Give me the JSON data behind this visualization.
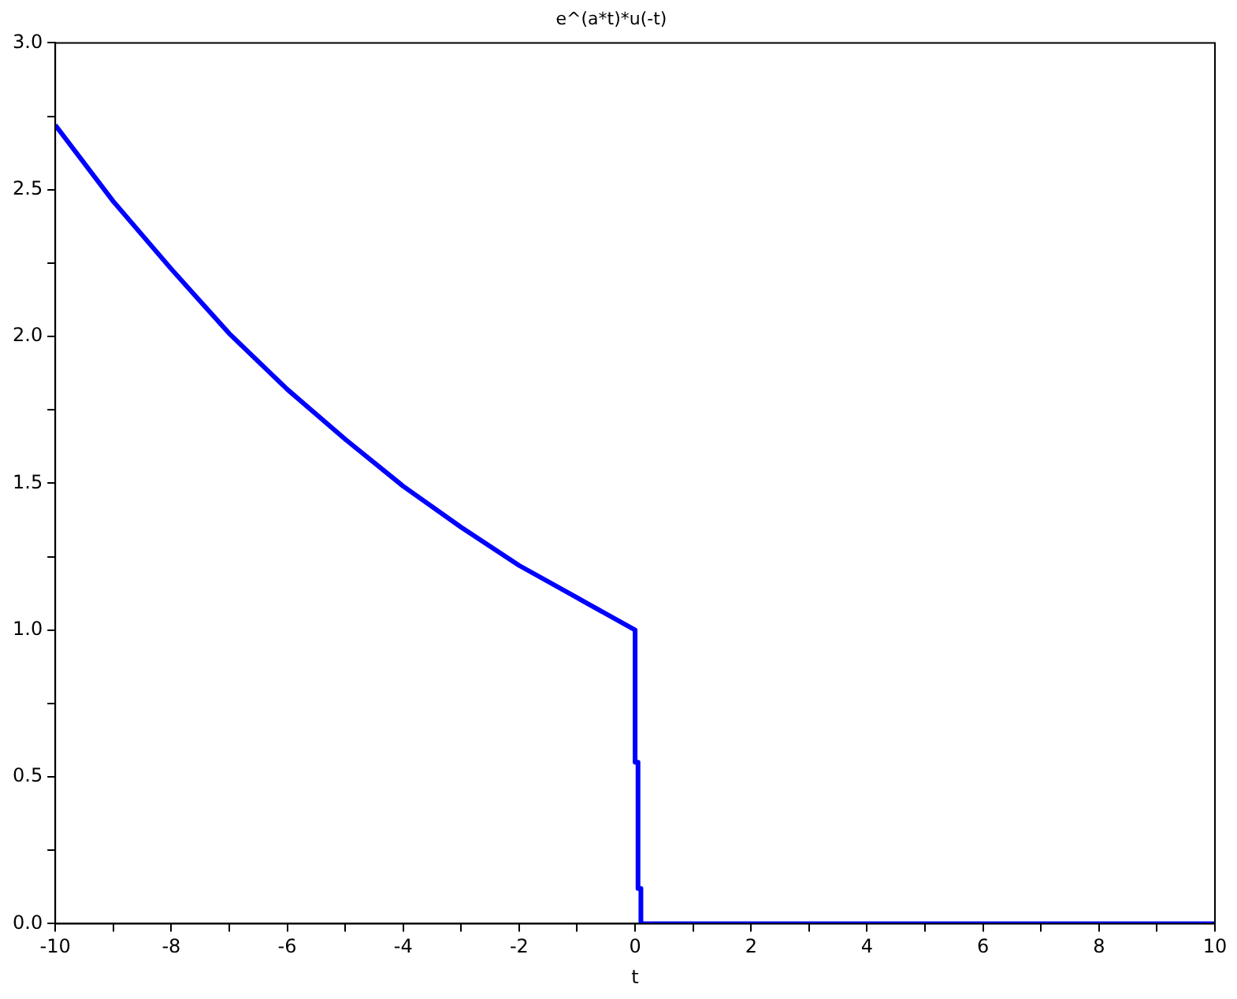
{
  "chart_data": {
    "type": "line",
    "title": "e^(a*t)*u(-t)",
    "xlabel": "t",
    "xlim": [
      -10,
      10
    ],
    "ylim": [
      0,
      3
    ],
    "xticks": [
      -10,
      {
        "value": -9,
        "label": null
      },
      -8,
      {
        "value": -7,
        "label": null
      },
      -6,
      {
        "value": -5,
        "label": null
      },
      -4,
      {
        "value": -3,
        "label": null
      },
      -2,
      {
        "value": -1,
        "label": null
      },
      0,
      {
        "value": 1,
        "label": null
      },
      2,
      {
        "value": 3,
        "label": null
      },
      4,
      {
        "value": 5,
        "label": null
      },
      6,
      {
        "value": 7,
        "label": null
      },
      8,
      {
        "value": 9,
        "label": null
      },
      10
    ],
    "yticks": [
      {
        "value": 0,
        "label": "0.0"
      },
      {
        "value": 0.25,
        "label": null
      },
      {
        "value": 0.5,
        "label": "0.5"
      },
      {
        "value": 0.75,
        "label": null
      },
      {
        "value": 1,
        "label": "1.0"
      },
      {
        "value": 1.25,
        "label": null
      },
      {
        "value": 1.5,
        "label": "1.5"
      },
      {
        "value": 1.75,
        "label": null
      },
      {
        "value": 2,
        "label": "2.0"
      },
      {
        "value": 2.25,
        "label": null
      },
      {
        "value": 2.5,
        "label": "2.5"
      },
      {
        "value": 2.75,
        "label": null
      },
      {
        "value": 3,
        "label": "3.0"
      }
    ],
    "grid": false,
    "legend": false,
    "marker": "none",
    "line_style": "solid",
    "series": [
      {
        "color": "#0000ff",
        "x": [
          -10,
          -9,
          -8,
          -7,
          -6,
          -5,
          -4,
          -3,
          -2,
          -1,
          0,
          0,
          0.05,
          0.05,
          0.1,
          0.1,
          10
        ],
        "values": [
          2.72,
          2.46,
          2.23,
          2.01,
          1.82,
          1.65,
          1.49,
          1.35,
          1.22,
          1.11,
          1.0,
          0.55,
          0.55,
          0.12,
          0.12,
          0,
          0
        ]
      }
    ]
  }
}
